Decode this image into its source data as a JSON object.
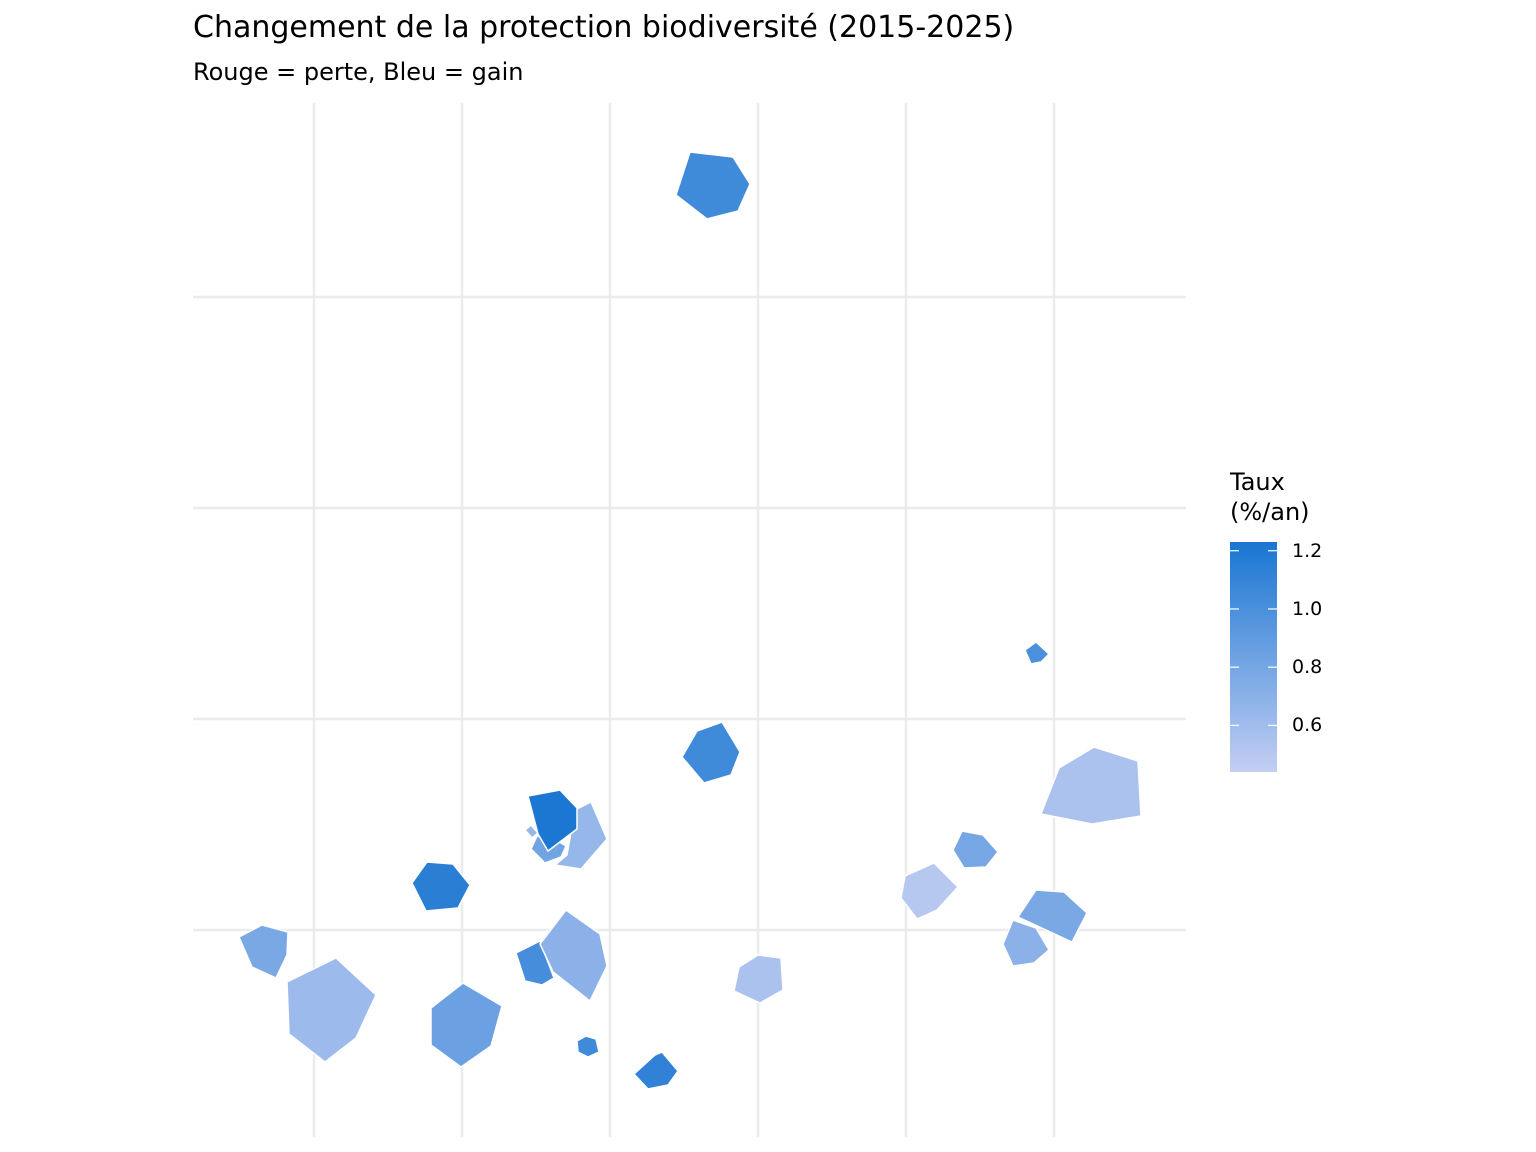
{
  "title": "Changement de la protection biodiversité (2015-2025)",
  "subtitle": "Rouge = perte, Bleu = gain",
  "chart_data": {
    "type": "choropleth",
    "title": "Changement de la protection biodiversité (2015-2025)",
    "subtitle": "Rouge = perte, Bleu = gain",
    "grid": true,
    "axis_labels_shown": false,
    "legend": {
      "title_line1": "Taux",
      "title_line2": "(%/an)",
      "placement": "right",
      "range": [
        0.44,
        1.23
      ],
      "ticks": [
        {
          "value": 1.2,
          "label": "1.2"
        },
        {
          "value": 1.0,
          "label": "1.0"
        },
        {
          "value": 0.8,
          "label": "0.8"
        },
        {
          "value": 0.6,
          "label": "0.6"
        }
      ],
      "low_color": "#c3cef3",
      "high_color": "#1976d2"
    },
    "regions": [
      {
        "value": 1.05
      },
      {
        "value": 1.05
      },
      {
        "value": 1.0
      },
      {
        "value": 0.55
      },
      {
        "value": 0.8
      },
      {
        "value": 0.5
      },
      {
        "value": 0.78
      },
      {
        "value": 0.7
      },
      {
        "value": 0.55
      },
      {
        "value": 0.65
      },
      {
        "value": 0.82
      },
      {
        "value": 0.65
      },
      {
        "value": 1.22
      },
      {
        "value": 1.15
      },
      {
        "value": 0.78
      },
      {
        "value": 0.62
      },
      {
        "value": 0.85
      },
      {
        "value": 1.02
      },
      {
        "value": 0.7
      },
      {
        "value": 1.05
      },
      {
        "value": 1.12
      }
    ]
  }
}
